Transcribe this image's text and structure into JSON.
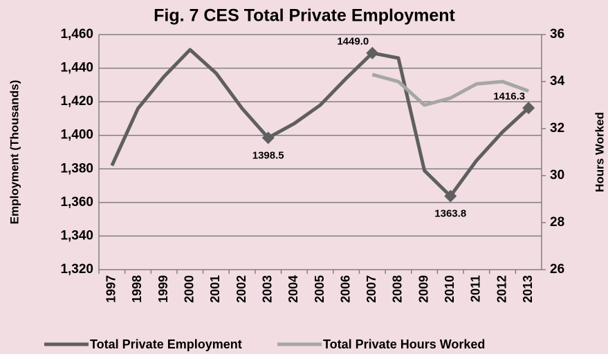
{
  "chart_data": {
    "type": "line",
    "title": "Fig. 7 CES Total Private Employment",
    "y_label": "Employment (Thousands)",
    "y2_label": "Hours Worked",
    "categories": [
      "1997",
      "1998",
      "1999",
      "2000",
      "2001",
      "2002",
      "2003",
      "2004",
      "2005",
      "2006",
      "2007",
      "2008",
      "2009",
      "2010",
      "2011",
      "2012",
      "2013"
    ],
    "series": [
      {
        "name": "Total Private Employment",
        "color": "#5f5f5f",
        "values": [
          1382,
          1416,
          1435,
          1451,
          1437,
          1416,
          1398.5,
          1407,
          1418,
          1434,
          1449,
          1446,
          1379,
          1363.8,
          1385,
          1402,
          1416.3
        ],
        "value_labels": [
          null,
          null,
          null,
          null,
          null,
          null,
          "1398.5",
          null,
          null,
          null,
          "1449.0",
          null,
          null,
          "1363.8",
          null,
          null,
          "1416.3"
        ]
      },
      {
        "name": "Total Private Hours Worked",
        "color": "#a6a6a6",
        "axis": "y2",
        "values": [
          null,
          null,
          null,
          null,
          null,
          null,
          null,
          null,
          null,
          null,
          34.3,
          34.0,
          33.0,
          33.3,
          33.9,
          34.0,
          33.6
        ]
      }
    ],
    "ylim": [
      1320,
      1460
    ],
    "yticks": [
      {
        "value": 1320,
        "label": "1,320"
      },
      {
        "value": 1340,
        "label": "1,340"
      },
      {
        "value": 1360,
        "label": "1,360"
      },
      {
        "value": 1380,
        "label": "1,380"
      },
      {
        "value": 1400,
        "label": "1,400"
      },
      {
        "value": 1420,
        "label": "1,420"
      },
      {
        "value": 1440,
        "label": "1,440"
      },
      {
        "value": 1460,
        "label": "1,460"
      }
    ],
    "y2lim": [
      26,
      36
    ],
    "y2ticks": [
      26,
      28,
      30,
      32,
      34,
      36
    ],
    "grid": true
  }
}
